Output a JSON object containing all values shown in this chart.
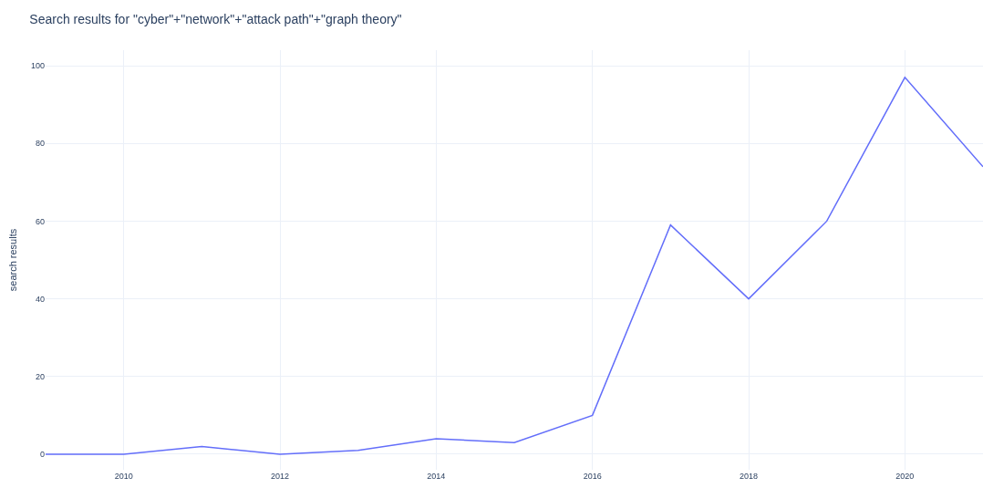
{
  "chart_data": {
    "type": "line",
    "title": "Search results for \"cyber\"+\"network\"+\"attack path\"+\"graph theory\"",
    "ylabel": "search results",
    "x": [
      2009,
      2010,
      2011,
      2012,
      2013,
      2014,
      2015,
      2016,
      2017,
      2018,
      2019,
      2020,
      2021
    ],
    "series": [
      {
        "color": "#636efa",
        "values": [
          0,
          0,
          2,
          0,
          1,
          4,
          3,
          10,
          59,
          40,
          60,
          97,
          74
        ]
      }
    ],
    "xlim": [
      2009,
      2021
    ],
    "xticks": [
      2010,
      2012,
      2014,
      2016,
      2018,
      2020
    ],
    "ylim": [
      -4,
      104
    ],
    "yticks": [
      0,
      20,
      40,
      60,
      80,
      100
    ],
    "grid": true,
    "marker": "none",
    "line_style": "solid"
  }
}
